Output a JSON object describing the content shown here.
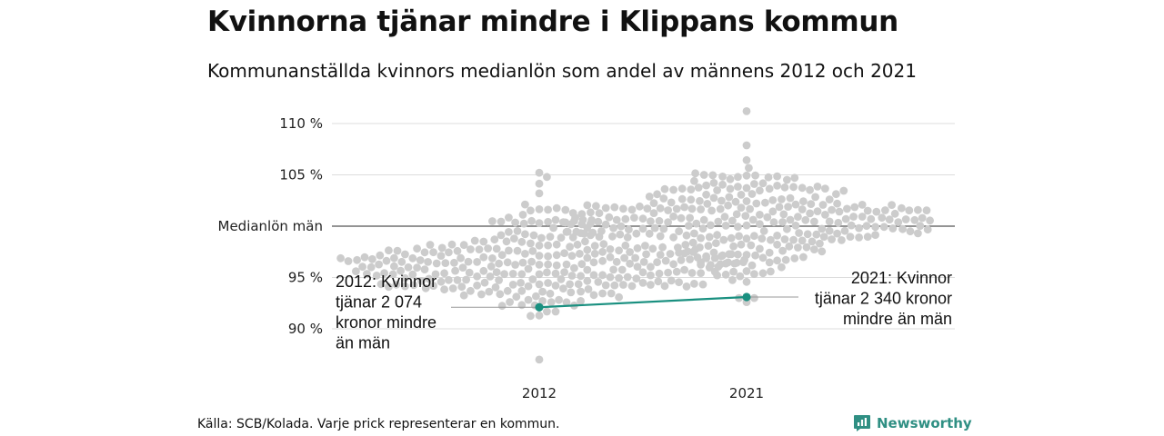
{
  "header": {
    "title": "Kvinnorna tjänar mindre i Klippans kommun",
    "subtitle": "Kommunanställda kvinnors medianlön som andel av männens 2012 och 2021"
  },
  "chart_data": {
    "type": "scatter",
    "style": "beeswarm",
    "xlabel": "",
    "ylabel": "",
    "categories": [
      "2012",
      "2021"
    ],
    "ylim": [
      86,
      112
    ],
    "yticks": [
      {
        "value": 90,
        "label": "90 %"
      },
      {
        "value": 95,
        "label": "95 %"
      },
      {
        "value": 100,
        "label": "Medianlön män"
      },
      {
        "value": 105,
        "label": "105 %"
      },
      {
        "value": 110,
        "label": "110 %"
      }
    ],
    "reference_line": {
      "value": 100
    },
    "distributions": [
      {
        "category": "2012",
        "center": 96.2,
        "spread": 2.4,
        "min": 87,
        "max": 105.2,
        "count": 290
      },
      {
        "category": "2021",
        "center": 100.8,
        "spread": 2.3,
        "min": 92.6,
        "max": 111.2,
        "count": 290
      }
    ],
    "highlight": {
      "name": "Klippan",
      "color": "#1a9080",
      "points": [
        {
          "x": "2012",
          "y": 92.1
        },
        {
          "x": "2021",
          "y": 93.1
        }
      ]
    },
    "annotations": [
      {
        "category": "2012",
        "lines": [
          "2012: Kvinnor",
          "tjänar 2 074",
          "kronor mindre",
          "än män"
        ]
      },
      {
        "category": "2021",
        "lines": [
          "2021: Kvinnor",
          "tjänar 2 340 kronor",
          "mindre än män"
        ]
      }
    ],
    "colors": {
      "dots": "#cccccc",
      "grid": "#dddddd",
      "reference": "#555555"
    },
    "grid": true
  },
  "footer": {
    "source": "Källa: SCB/Kolada. Varje prick representerar en kommun.",
    "brand": "Newsworthy",
    "brand_icon": "bar-chart-badge-icon"
  }
}
